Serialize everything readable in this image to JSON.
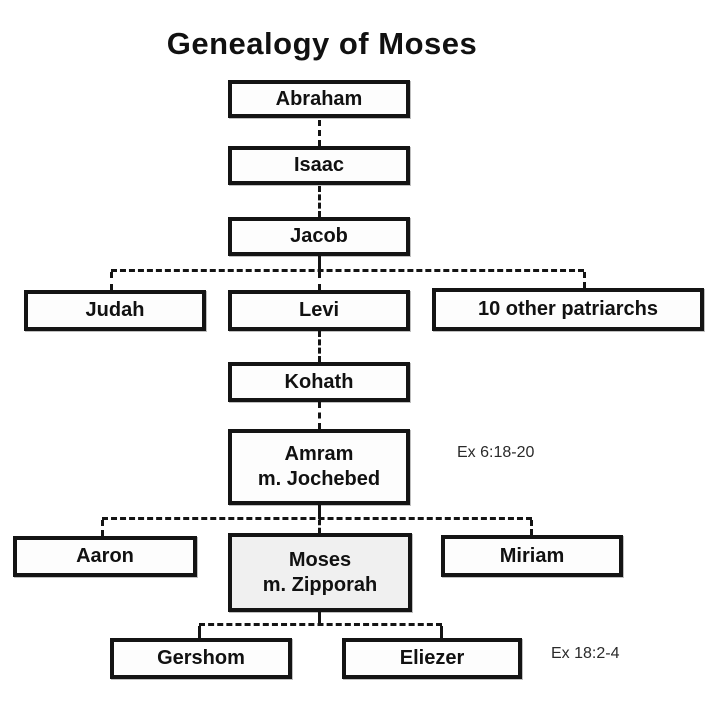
{
  "title": "Genealogy of Moses",
  "nodes": {
    "abraham": {
      "label": "Abraham"
    },
    "isaac": {
      "label": "Isaac"
    },
    "jacob": {
      "label": "Jacob"
    },
    "judah": {
      "label": "Judah"
    },
    "levi": {
      "label": "Levi"
    },
    "patriarchs": {
      "label": "10 other patriarchs"
    },
    "kohath": {
      "label": "Kohath"
    },
    "amram": {
      "label": "Amram",
      "spouse": "m. Jochebed"
    },
    "aaron": {
      "label": "Aaron"
    },
    "moses": {
      "label": "Moses",
      "spouse": "m. Zipporah"
    },
    "miriam": {
      "label": "Miriam"
    },
    "gershom": {
      "label": "Gershom"
    },
    "eliezer": {
      "label": "Eliezer"
    }
  },
  "annotations": {
    "amram_reference": "Ex 6:18-20",
    "moses_children_reference": "Ex 18:2-4"
  },
  "colors": {
    "line": "#141414",
    "box_fill": "#fdfdfd",
    "moses_box_fill": "#f0f0f0",
    "background": "#ffffff",
    "text": "#111111"
  }
}
